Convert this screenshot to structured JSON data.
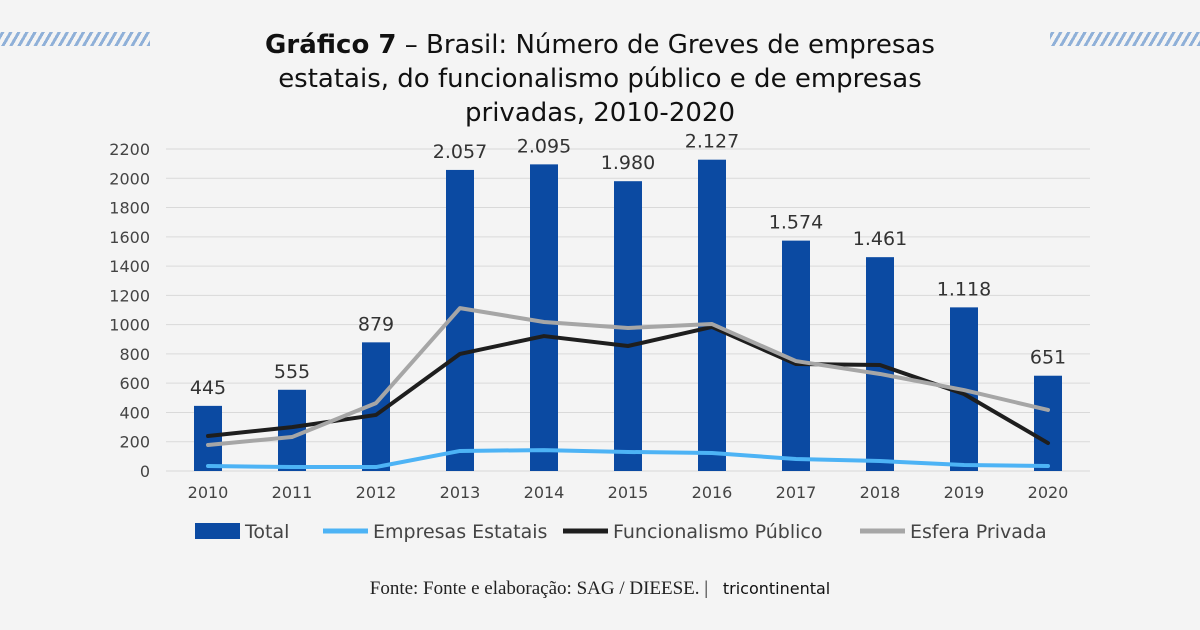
{
  "title_bold": "Gráfico 7",
  "title_rest": " – Brasil: Número de Greves de empresas estatais, do funcionalismo público e de empresas privadas, 2010-2020",
  "source": "Fonte: Fonte e elaboração: SAG / DIEESE. |",
  "logo_text": "tricontinental",
  "chart_data": {
    "type": "bar",
    "title": "Gráfico 7 – Brasil: Número de Greves de empresas estatais, do funcionalismo público e de empresas privadas, 2010-2020",
    "categories": [
      "2010",
      "2011",
      "2012",
      "2013",
      "2014",
      "2015",
      "2016",
      "2017",
      "2018",
      "2019",
      "2020"
    ],
    "ylim": [
      0,
      2200
    ],
    "yticks": [
      0,
      200,
      400,
      600,
      800,
      1000,
      1200,
      1400,
      1600,
      1800,
      2000,
      2200
    ],
    "grid": true,
    "legend": "bottom",
    "series": [
      {
        "name": "Total",
        "type": "bar",
        "color": "#0b4aa2",
        "values": [
          445,
          555,
          879,
          2057,
          2095,
          1980,
          2127,
          1574,
          1461,
          1118,
          651
        ],
        "labels": [
          "445",
          "555",
          "879",
          "2.057",
          "2.095",
          "1.980",
          "2.127",
          "1.574",
          "1.461",
          "1.118",
          "651"
        ]
      },
      {
        "name": "Empresas Estatais",
        "type": "line",
        "color": "#4db3f5",
        "values": [
          34,
          27,
          27,
          137,
          143,
          130,
          123,
          82,
          68,
          41,
          34
        ]
      },
      {
        "name": "Funcionalismo Público",
        "type": "line",
        "color": "#1e1e1e",
        "values": [
          239,
          300,
          383,
          800,
          922,
          854,
          984,
          731,
          724,
          526,
          191
        ]
      },
      {
        "name": "Esfera Privada",
        "type": "line",
        "color": "#a6a6a6",
        "values": [
          178,
          232,
          464,
          1113,
          1018,
          977,
          1004,
          751,
          663,
          553,
          417
        ]
      }
    ]
  }
}
